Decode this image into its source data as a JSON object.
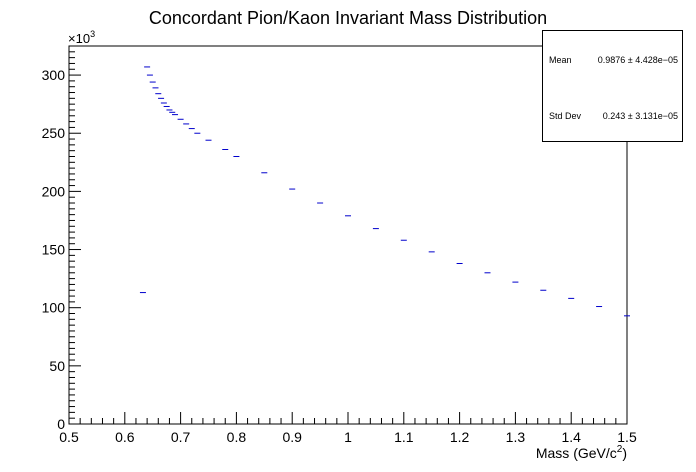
{
  "chart_data": {
    "type": "scatter",
    "title": "Concordant Pion/Kaon Invariant Mass Distribution",
    "xlabel": "Mass (GeV/c",
    "xlabel_sup": "2",
    "xlabel_close": ")",
    "ylabel": "",
    "y_multiplier_base": "×10",
    "y_multiplier_exp": "3",
    "xlim": [
      0.5,
      1.5
    ],
    "ylim": [
      0,
      325
    ],
    "x_ticks": [
      "0.5",
      "0.6",
      "0.7",
      "0.8",
      "0.9",
      "1",
      "1.1",
      "1.2",
      "1.3",
      "1.4",
      "1.5"
    ],
    "y_ticks": [
      "0",
      "50",
      "100",
      "150",
      "200",
      "250",
      "300"
    ],
    "marker_color": "#0000cc",
    "grid": false,
    "legend": "stats box top-right",
    "series": [
      {
        "x": [
          0.6325,
          0.64,
          0.645,
          0.65,
          0.655,
          0.66,
          0.665,
          0.67,
          0.675,
          0.68,
          0.685,
          0.69,
          0.7,
          0.71,
          0.72,
          0.73,
          0.75,
          0.78,
          0.8,
          0.85,
          0.9,
          0.95,
          1.0,
          1.05,
          1.1,
          1.15,
          1.2,
          1.25,
          1.3,
          1.35,
          1.4,
          1.45,
          1.5
        ],
        "y": [
          113,
          307,
          300,
          294,
          289,
          284,
          280,
          276,
          273,
          270,
          268,
          266,
          262,
          258,
          254,
          250,
          244,
          236,
          230,
          216,
          202,
          190,
          179,
          168,
          158,
          148,
          138,
          130,
          122,
          115,
          108,
          101,
          93
        ]
      }
    ]
  },
  "stats": {
    "mean_label": "Mean",
    "mean_value": "0.9876 ± 4.428e−05",
    "std_label": "Std Dev",
    "std_value": "0.243 ± 3.131e−05"
  }
}
